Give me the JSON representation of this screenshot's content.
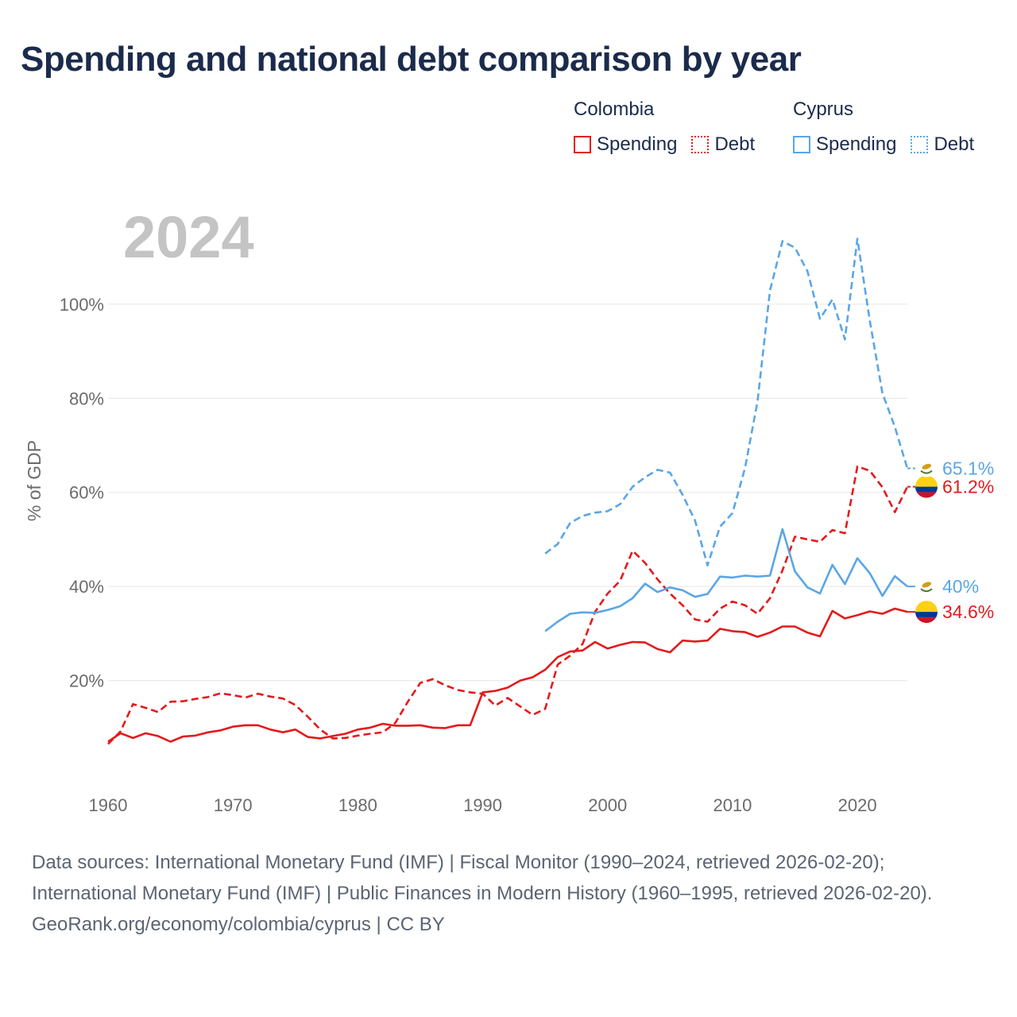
{
  "title": "Spending and national debt comparison by year",
  "legend": {
    "groups": [
      {
        "country": "Colombia",
        "items": [
          {
            "label": "Spending",
            "style": "solid",
            "color": "#e41a1c"
          },
          {
            "label": "Debt",
            "style": "dotted",
            "color": "#e41a1c"
          }
        ]
      },
      {
        "country": "Cyprus",
        "items": [
          {
            "label": "Spending",
            "style": "solid",
            "color": "#5aa6e6"
          },
          {
            "label": "Debt",
            "style": "dotted",
            "color": "#5aa6e6"
          }
        ]
      }
    ]
  },
  "chart_data": {
    "type": "line",
    "year_label": "2024",
    "ylabel": "% of GDP",
    "xlabel": "",
    "xlim": [
      1960,
      2024
    ],
    "ylim": [
      0,
      115
    ],
    "x_ticks": [
      1960,
      1970,
      1980,
      1990,
      2000,
      2010,
      2020
    ],
    "y_ticks": [
      {
        "value": 20,
        "label": "20%"
      },
      {
        "value": 40,
        "label": "40%"
      },
      {
        "value": 60,
        "label": "60%"
      },
      {
        "value": 80,
        "label": "80%"
      },
      {
        "value": 100,
        "label": "100%"
      }
    ],
    "gridlines": true,
    "series": [
      {
        "name": "Colombia Spending",
        "country": "Colombia",
        "measure": "Spending",
        "color": "#e41a1c",
        "dash": "solid",
        "end_label": "34.6%",
        "end_flag": "colombia",
        "start_year": 1960,
        "values": [
          7.0,
          8.8,
          7.8,
          8.8,
          8.2,
          7.0,
          8.1,
          8.3,
          9.0,
          9.4,
          10.2,
          10.5,
          10.5,
          9.6,
          9.0,
          9.6,
          8.0,
          7.7,
          8.2,
          8.7,
          9.6,
          10.0,
          10.8,
          10.4,
          10.4,
          10.5,
          10.0,
          9.9,
          10.5,
          10.5,
          17.5,
          17.8,
          18.5,
          20.0,
          20.7,
          22.3,
          25.0,
          26.2,
          26.4,
          28.2,
          26.8,
          27.6,
          28.2,
          28.1,
          26.7,
          26.0,
          28.5,
          28.3,
          28.5,
          31.0,
          30.5,
          30.3,
          29.3,
          30.2,
          31.5,
          31.5,
          30.2,
          29.4,
          34.8,
          33.2,
          33.9,
          34.7,
          34.2,
          35.3,
          34.6
        ]
      },
      {
        "name": "Colombia Debt",
        "country": "Colombia",
        "measure": "Debt",
        "color": "#e41a1c",
        "dash": "dashed",
        "end_label": "61.2%",
        "end_flag": "colombia",
        "start_year": 1960,
        "values": [
          6.5,
          9.2,
          15.0,
          14.2,
          13.3,
          15.5,
          15.6,
          16.1,
          16.5,
          17.3,
          16.9,
          16.4,
          17.2,
          16.6,
          16.2,
          14.8,
          12.3,
          9.6,
          7.7,
          7.8,
          8.3,
          8.7,
          9.0,
          11.0,
          15.5,
          19.5,
          20.3,
          19.0,
          18.0,
          17.5,
          17.2,
          14.7,
          16.3,
          14.5,
          12.7,
          14.0,
          23.4,
          25.3,
          27.8,
          34.6,
          38.5,
          41.2,
          47.6,
          45.0,
          41.5,
          38.5,
          36.0,
          33.0,
          32.5,
          35.3,
          36.8,
          36.0,
          34.2,
          37.5,
          43.4,
          50.6,
          50.0,
          49.5,
          52.0,
          51.3,
          65.5,
          64.6,
          61.1,
          55.8,
          61.2
        ]
      },
      {
        "name": "Cyprus Spending",
        "country": "Cyprus",
        "measure": "Spending",
        "color": "#5aa6e6",
        "dash": "solid",
        "end_label": "40%",
        "end_flag": "cyprus",
        "start_year": 1995,
        "values": [
          30.5,
          32.5,
          34.2,
          34.5,
          34.4,
          35.0,
          35.8,
          37.5,
          40.6,
          38.8,
          39.8,
          39.2,
          37.8,
          38.4,
          42.1,
          41.9,
          42.3,
          42.1,
          42.3,
          52.2,
          43.2,
          39.8,
          38.5,
          44.6,
          40.5,
          46.0,
          42.8,
          38.0,
          42.2,
          40.0
        ]
      },
      {
        "name": "Cyprus Debt",
        "country": "Cyprus",
        "measure": "Debt",
        "color": "#5aa6e6",
        "dash": "dashed",
        "end_label": "65.1%",
        "end_flag": "cyprus",
        "start_year": 1995,
        "values": [
          47.0,
          49.0,
          53.5,
          55.0,
          55.7,
          56.0,
          57.5,
          61.2,
          63.2,
          64.8,
          64.2,
          59.5,
          54.0,
          44.5,
          52.7,
          55.6,
          65.2,
          79.3,
          102.9,
          113.4,
          112.0,
          107.0,
          96.9,
          101.0,
          92.5,
          113.9,
          96.4,
          81.1,
          73.9,
          65.1
        ]
      }
    ]
  },
  "footer": {
    "sources": "Data sources: International Monetary Fund (IMF) | Fiscal Monitor (1990–2024, retrieved 2026-02-20); International Monetary Fund (IMF) | Public Finances in Modern History (1960–1995, retrieved 2026-02-20).",
    "credit": "GeoRank.org/economy/colombia/cyprus | CC BY"
  }
}
